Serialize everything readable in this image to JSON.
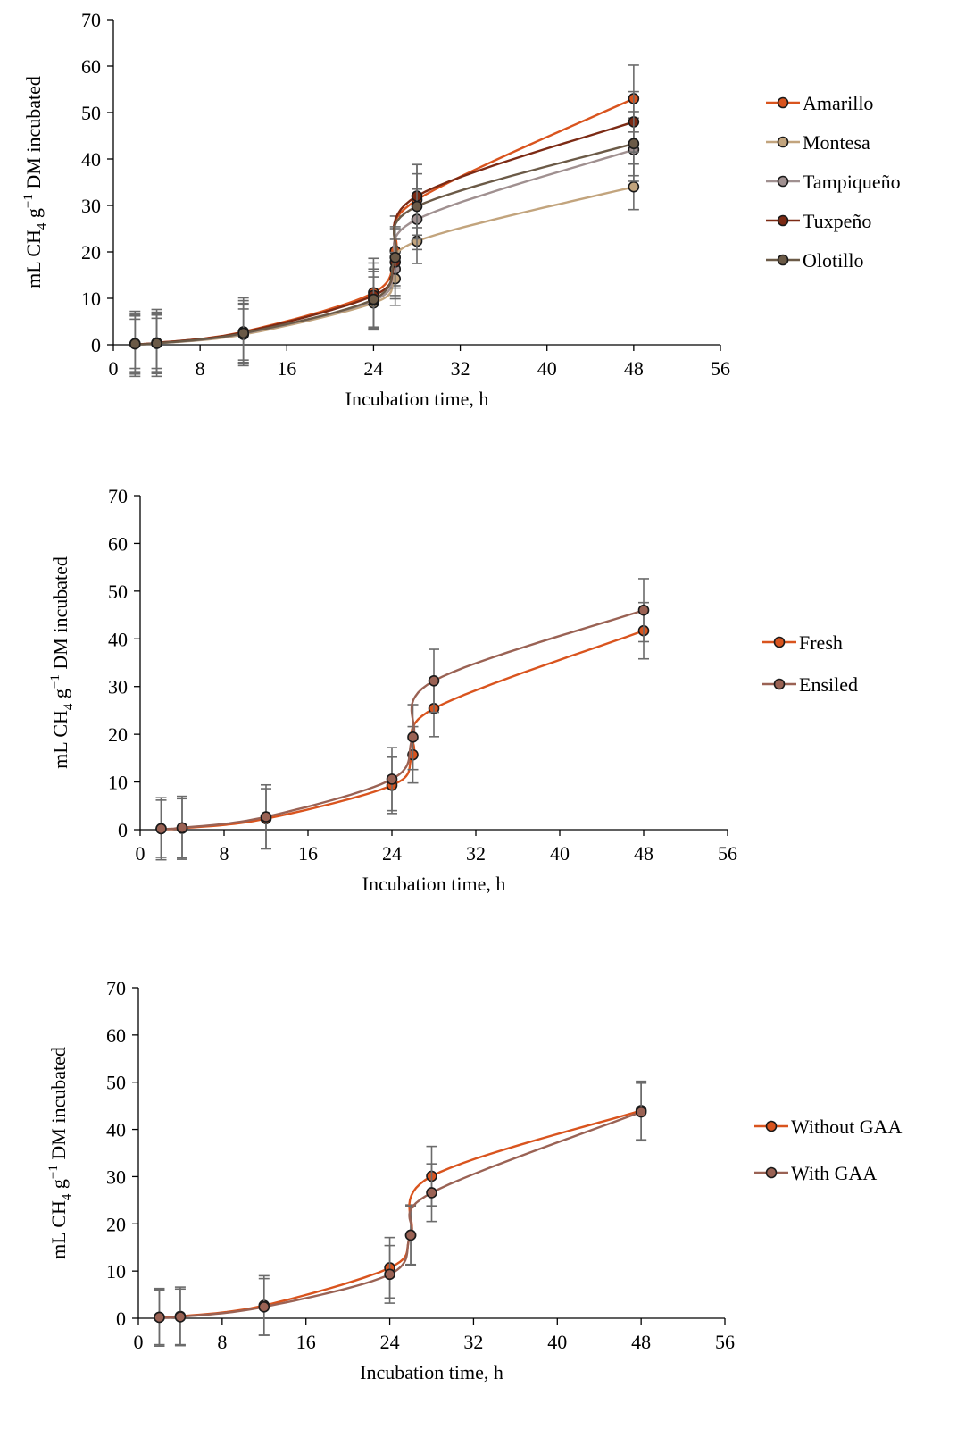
{
  "chart_data": [
    {
      "type": "line",
      "xlabel": "Incubation time, h",
      "ylabel_parts": [
        "mL CH",
        "4",
        " g",
        "−1",
        " DM incubated"
      ],
      "xlim": [
        0,
        56
      ],
      "ylim": [
        0,
        70
      ],
      "xticks": [
        0,
        8,
        16,
        24,
        32,
        40,
        48,
        56
      ],
      "yticks": [
        0,
        10,
        20,
        30,
        40,
        50,
        60,
        70
      ],
      "legend_position": "right",
      "series": [
        {
          "name": "Amarillo",
          "color": "#d9541e",
          "x": [
            2,
            4,
            12,
            24,
            26,
            28,
            48
          ],
          "y": [
            0.2,
            0.4,
            2.8,
            11.2,
            20.2,
            31.2,
            53.0
          ],
          "err": [
            7.0,
            7.2,
            7.3,
            7.4,
            7.5,
            7.6,
            7.2
          ]
        },
        {
          "name": "Montesa",
          "color": "#c2a47d",
          "x": [
            2,
            4,
            12,
            24,
            26,
            28,
            48
          ],
          "y": [
            0.2,
            0.3,
            2.2,
            9.0,
            14.2,
            22.3,
            34.0
          ],
          "err": [
            5.3,
            5.4,
            5.5,
            5.6,
            5.7,
            4.8,
            4.9
          ]
        },
        {
          "name": "Tampiqueño",
          "color": "#a09090",
          "x": [
            2,
            4,
            12,
            24,
            26,
            28,
            48
          ],
          "y": [
            0.2,
            0.3,
            2.4,
            9.5,
            16.3,
            27.0,
            42.0
          ],
          "err": [
            6.0,
            6.1,
            6.2,
            6.3,
            6.4,
            6.5,
            6.8
          ]
        },
        {
          "name": "Tuxpeño",
          "color": "#7c2a14",
          "x": [
            2,
            4,
            12,
            24,
            26,
            28,
            48
          ],
          "y": [
            0.2,
            0.4,
            2.7,
            10.6,
            17.8,
            32.0,
            48.0
          ],
          "err": [
            6.5,
            6.6,
            6.8,
            7.0,
            7.2,
            6.8,
            6.5
          ]
        },
        {
          "name": "Olotillo",
          "color": "#6b5a47",
          "x": [
            2,
            4,
            12,
            24,
            26,
            28,
            48
          ],
          "y": [
            0.2,
            0.3,
            2.5,
            9.8,
            18.8,
            29.8,
            43.3
          ],
          "err": [
            6.2,
            6.3,
            6.4,
            6.5,
            6.6,
            7.0,
            6.9
          ]
        }
      ]
    },
    {
      "type": "line",
      "xlabel": "Incubation time, h",
      "ylabel_parts": [
        "mL CH",
        "4",
        " g",
        "−1",
        " DM incubated"
      ],
      "xlim": [
        0,
        56
      ],
      "ylim": [
        0,
        70
      ],
      "xticks": [
        0,
        8,
        16,
        24,
        32,
        40,
        48,
        56
      ],
      "yticks": [
        0,
        10,
        20,
        30,
        40,
        50,
        60,
        70
      ],
      "legend_position": "right",
      "series": [
        {
          "name": "Fresh",
          "color": "#d9541e",
          "x": [
            2,
            4,
            12,
            24,
            26,
            28,
            48
          ],
          "y": [
            0.2,
            0.3,
            2.3,
            9.3,
            15.7,
            25.4,
            41.7
          ],
          "err": [
            6.0,
            6.2,
            6.3,
            5.9,
            5.9,
            5.9,
            5.9
          ]
        },
        {
          "name": "Ensiled",
          "color": "#9a6254",
          "x": [
            2,
            4,
            12,
            24,
            26,
            28,
            48
          ],
          "y": [
            0.2,
            0.4,
            2.7,
            10.6,
            19.4,
            31.2,
            46.0
          ],
          "err": [
            6.5,
            6.6,
            6.7,
            6.6,
            6.8,
            6.6,
            6.6
          ]
        }
      ]
    },
    {
      "type": "line",
      "xlabel": "Incubation time, h",
      "ylabel_parts": [
        "mL CH",
        "4",
        " g",
        "−1",
        " DM incubated"
      ],
      "xlim": [
        0,
        56
      ],
      "ylim": [
        0,
        70
      ],
      "xticks": [
        0,
        8,
        16,
        24,
        32,
        40,
        48,
        56
      ],
      "yticks": [
        0,
        10,
        20,
        30,
        40,
        50,
        60,
        70
      ],
      "legend_position": "right",
      "series": [
        {
          "name": "Without GAA",
          "color": "#d9541e",
          "x": [
            2,
            4,
            12,
            24,
            26,
            28,
            48
          ],
          "y": [
            0.2,
            0.4,
            2.7,
            10.7,
            17.6,
            30.1,
            44.0
          ],
          "err": [
            6.1,
            6.2,
            6.3,
            6.4,
            6.4,
            6.3,
            6.2
          ]
        },
        {
          "name": "With GAA",
          "color": "#9a6254",
          "x": [
            2,
            4,
            12,
            24,
            26,
            28,
            48
          ],
          "y": [
            0.2,
            0.3,
            2.4,
            9.3,
            17.6,
            26.6,
            43.7
          ],
          "err": [
            5.8,
            5.9,
            6.0,
            6.1,
            6.2,
            6.1,
            6.1
          ]
        }
      ]
    }
  ]
}
